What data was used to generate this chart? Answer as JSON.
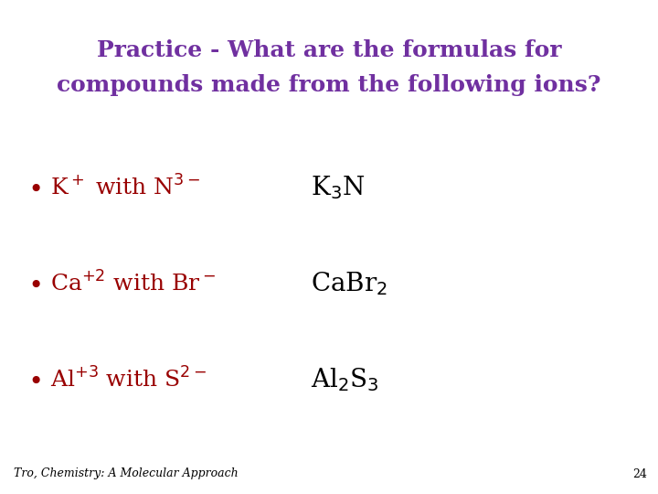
{
  "background_color": "#ffffff",
  "title_line1": "Practice - What are the formulas for",
  "title_line2": "compounds made from the following ions?",
  "title_color": "#7030A0",
  "title_fontsize": 18,
  "bullet_color": "#990000",
  "bullet_fontsize": 18,
  "answer_color": "#000000",
  "answer_fontsize": 20,
  "footer_text": "Tro, Chemistry: A Molecular Approach",
  "footer_page": "24",
  "footer_fontsize": 9,
  "footer_color": "#000000",
  "fig_width": 7.2,
  "fig_height": 5.4,
  "fig_dpi": 100
}
